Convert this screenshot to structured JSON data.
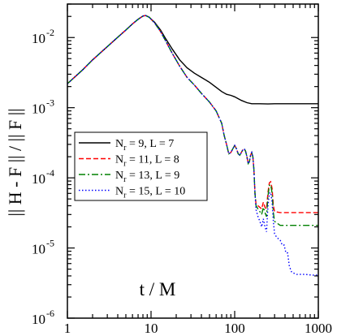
{
  "chart_data": {
    "type": "line",
    "title": "",
    "xlabel": "t / M",
    "ylabel": "|| H - F || / || F ||",
    "x_scale": "log",
    "y_scale": "log",
    "xlim": [
      1,
      1000
    ],
    "ylim": [
      1e-06,
      0.03
    ],
    "x_ticks": [
      {
        "value": 1,
        "label": "1"
      },
      {
        "value": 10,
        "label": "10"
      },
      {
        "value": 100,
        "label": "100"
      },
      {
        "value": 1000,
        "label": "1000"
      }
    ],
    "y_ticks": [
      {
        "value": 1e-06,
        "base": "10",
        "exp": "-6"
      },
      {
        "value": 1e-05,
        "base": "10",
        "exp": "-5"
      },
      {
        "value": 0.0001,
        "base": "10",
        "exp": "-4"
      },
      {
        "value": 0.001,
        "base": "10",
        "exp": "-3"
      },
      {
        "value": 0.01,
        "base": "10",
        "exp": "-2"
      }
    ],
    "grid": false,
    "legend_position": "left-center",
    "series": [
      {
        "name": {
          "main": "N",
          "sub": "r",
          "rest": " = 9, L = 7"
        },
        "color": "#000000",
        "dash": "solid",
        "points": [
          [
            1,
            0.0022
          ],
          [
            1.5,
            0.0034
          ],
          [
            2,
            0.0048
          ],
          [
            3,
            0.0074
          ],
          [
            4,
            0.0101
          ],
          [
            5,
            0.0128
          ],
          [
            6,
            0.0156
          ],
          [
            7,
            0.0182
          ],
          [
            8,
            0.0202
          ],
          [
            8.6,
            0.0206
          ],
          [
            9.5,
            0.0195
          ],
          [
            11,
            0.0165
          ],
          [
            13,
            0.0128
          ],
          [
            15,
            0.0096
          ],
          [
            18,
            0.0068
          ],
          [
            22,
            0.0048
          ],
          [
            27,
            0.0037
          ],
          [
            33,
            0.0031
          ],
          [
            40,
            0.0027
          ],
          [
            50,
            0.0023
          ],
          [
            60,
            0.00195
          ],
          [
            70,
            0.0017
          ],
          [
            80,
            0.00155
          ],
          [
            90,
            0.0015
          ],
          [
            100,
            0.00143
          ],
          [
            120,
            0.00127
          ],
          [
            140,
            0.00118
          ],
          [
            160,
            0.00114
          ],
          [
            180,
            0.00114
          ],
          [
            200,
            0.00114
          ],
          [
            250,
            0.00113
          ],
          [
            300,
            0.00114
          ],
          [
            400,
            0.00114
          ],
          [
            500,
            0.00114
          ],
          [
            700,
            0.00114
          ],
          [
            1000,
            0.00114
          ]
        ]
      },
      {
        "name": {
          "main": "N",
          "sub": "r",
          "rest": " = 11, L = 8"
        },
        "color": "#ff0000",
        "dash": "dashed",
        "points": [
          [
            1,
            0.0022
          ],
          [
            1.5,
            0.0034
          ],
          [
            2,
            0.0048
          ],
          [
            3,
            0.0074
          ],
          [
            4,
            0.0101
          ],
          [
            5,
            0.0128
          ],
          [
            6,
            0.0156
          ],
          [
            7,
            0.0182
          ],
          [
            8,
            0.0202
          ],
          [
            8.6,
            0.0206
          ],
          [
            9.5,
            0.0195
          ],
          [
            11,
            0.0162
          ],
          [
            13,
            0.0122
          ],
          [
            15,
            0.0089
          ],
          [
            18,
            0.0059
          ],
          [
            22,
            0.0039
          ],
          [
            27,
            0.0027
          ],
          [
            33,
            0.0021
          ],
          [
            40,
            0.0016
          ],
          [
            50,
            0.0012
          ],
          [
            60,
            0.0009
          ],
          [
            70,
            0.0006
          ],
          [
            75,
            0.0004
          ],
          [
            80,
            0.0003
          ],
          [
            85,
            0.00022
          ],
          [
            90,
            0.00023
          ],
          [
            95,
            0.00026
          ],
          [
            100,
            0.00029
          ],
          [
            105,
            0.00026
          ],
          [
            110,
            0.00022
          ],
          [
            115,
            0.00021
          ],
          [
            120,
            0.00023
          ],
          [
            125,
            0.00025
          ],
          [
            130,
            0.00026
          ],
          [
            135,
            0.00024
          ],
          [
            140,
            0.0002
          ],
          [
            145,
            0.00016
          ],
          [
            150,
            0.00017
          ],
          [
            155,
            0.00021
          ],
          [
            160,
            0.00023
          ],
          [
            165,
            0.0002
          ],
          [
            170,
            0.00013
          ],
          [
            175,
            6e-05
          ],
          [
            180,
            4.2e-05
          ],
          [
            190,
            4e-05
          ],
          [
            200,
            3.8e-05
          ],
          [
            210,
            3.6e-05
          ],
          [
            220,
            4.5e-05
          ],
          [
            230,
            3.8e-05
          ],
          [
            240,
            3.6e-05
          ],
          [
            250,
            6.2e-05
          ],
          [
            260,
            8.5e-05
          ],
          [
            270,
            8.8e-05
          ],
          [
            280,
            7e-05
          ],
          [
            290,
            4e-05
          ],
          [
            300,
            3.3e-05
          ],
          [
            350,
            3.2e-05
          ],
          [
            400,
            3.2e-05
          ],
          [
            500,
            3.2e-05
          ],
          [
            600,
            3.2e-05
          ],
          [
            800,
            3.2e-05
          ],
          [
            1000,
            3.2e-05
          ]
        ]
      },
      {
        "name": {
          "main": "N",
          "sub": "r",
          "rest": " = 13, L = 9"
        },
        "color": "#008000",
        "dash": "dashdot",
        "points": [
          [
            1,
            0.0022
          ],
          [
            1.5,
            0.0034
          ],
          [
            2,
            0.0048
          ],
          [
            3,
            0.0074
          ],
          [
            4,
            0.0101
          ],
          [
            5,
            0.0128
          ],
          [
            6,
            0.0156
          ],
          [
            7,
            0.0182
          ],
          [
            8,
            0.0202
          ],
          [
            8.6,
            0.0206
          ],
          [
            9.5,
            0.0195
          ],
          [
            11,
            0.0162
          ],
          [
            13,
            0.0122
          ],
          [
            15,
            0.0089
          ],
          [
            18,
            0.0059
          ],
          [
            22,
            0.0039
          ],
          [
            27,
            0.0027
          ],
          [
            33,
            0.0021
          ],
          [
            40,
            0.0016
          ],
          [
            50,
            0.0012
          ],
          [
            60,
            0.0009
          ],
          [
            70,
            0.0006
          ],
          [
            75,
            0.0004
          ],
          [
            80,
            0.0003
          ],
          [
            85,
            0.00022
          ],
          [
            90,
            0.00023
          ],
          [
            95,
            0.00026
          ],
          [
            100,
            0.00029
          ],
          [
            105,
            0.00026
          ],
          [
            110,
            0.00022
          ],
          [
            115,
            0.00021
          ],
          [
            120,
            0.00023
          ],
          [
            125,
            0.00025
          ],
          [
            130,
            0.00026
          ],
          [
            135,
            0.00024
          ],
          [
            140,
            0.0002
          ],
          [
            145,
            0.00016
          ],
          [
            150,
            0.00017
          ],
          [
            155,
            0.00021
          ],
          [
            160,
            0.00023
          ],
          [
            165,
            0.0002
          ],
          [
            170,
            0.00013
          ],
          [
            175,
            6e-05
          ],
          [
            180,
            4e-05
          ],
          [
            190,
            3.6e-05
          ],
          [
            200,
            3.3e-05
          ],
          [
            210,
            3e-05
          ],
          [
            220,
            3.8e-05
          ],
          [
            230,
            3.2e-05
          ],
          [
            240,
            2.8e-05
          ],
          [
            250,
            5.5e-05
          ],
          [
            260,
            7.8e-05
          ],
          [
            270,
            8e-05
          ],
          [
            280,
            6e-05
          ],
          [
            290,
            3.2e-05
          ],
          [
            300,
            2.4e-05
          ],
          [
            350,
            2.1e-05
          ],
          [
            400,
            2.1e-05
          ],
          [
            500,
            2.1e-05
          ],
          [
            600,
            2.1e-05
          ],
          [
            800,
            2.1e-05
          ],
          [
            1000,
            2.1e-05
          ]
        ]
      },
      {
        "name": {
          "main": "N",
          "sub": "r",
          "rest": " = 15, L = 10"
        },
        "color": "#0000ff",
        "dash": "dotted",
        "points": [
          [
            1,
            0.0022
          ],
          [
            1.5,
            0.0034
          ],
          [
            2,
            0.0048
          ],
          [
            3,
            0.0074
          ],
          [
            4,
            0.0101
          ],
          [
            5,
            0.0128
          ],
          [
            6,
            0.0156
          ],
          [
            7,
            0.0182
          ],
          [
            8,
            0.0202
          ],
          [
            8.6,
            0.0206
          ],
          [
            9.5,
            0.0195
          ],
          [
            11,
            0.0162
          ],
          [
            13,
            0.0122
          ],
          [
            15,
            0.0089
          ],
          [
            18,
            0.0059
          ],
          [
            22,
            0.0039
          ],
          [
            27,
            0.0027
          ],
          [
            33,
            0.0021
          ],
          [
            40,
            0.0016
          ],
          [
            50,
            0.0012
          ],
          [
            60,
            0.0009
          ],
          [
            70,
            0.0006
          ],
          [
            75,
            0.0004
          ],
          [
            80,
            0.0003
          ],
          [
            85,
            0.00022
          ],
          [
            90,
            0.00023
          ],
          [
            95,
            0.00026
          ],
          [
            100,
            0.00029
          ],
          [
            105,
            0.00026
          ],
          [
            110,
            0.00022
          ],
          [
            115,
            0.00021
          ],
          [
            120,
            0.00023
          ],
          [
            125,
            0.00025
          ],
          [
            130,
            0.00026
          ],
          [
            135,
            0.00024
          ],
          [
            140,
            0.0002
          ],
          [
            145,
            0.00016
          ],
          [
            150,
            0.00017
          ],
          [
            155,
            0.00021
          ],
          [
            160,
            0.00023
          ],
          [
            165,
            0.0002
          ],
          [
            170,
            0.00013
          ],
          [
            175,
            6e-05
          ],
          [
            180,
            3.5e-05
          ],
          [
            190,
            2.8e-05
          ],
          [
            200,
            2.4e-05
          ],
          [
            210,
            2e-05
          ],
          [
            220,
            2.6e-05
          ],
          [
            230,
            2e-05
          ],
          [
            240,
            1.7e-05
          ],
          [
            250,
            4e-05
          ],
          [
            260,
            6e-05
          ],
          [
            270,
            6.2e-05
          ],
          [
            280,
            4.5e-05
          ],
          [
            290,
            2.4e-05
          ],
          [
            300,
            1.6e-05
          ],
          [
            320,
            1.4e-05
          ],
          [
            350,
            1.3e-05
          ],
          [
            370,
            1.1e-05
          ],
          [
            390,
            1.1e-05
          ],
          [
            410,
            8.5e-06
          ],
          [
            430,
            8.5e-06
          ],
          [
            450,
            5.5e-06
          ],
          [
            480,
            4.5e-06
          ],
          [
            550,
            4.2e-06
          ],
          [
            700,
            4.2e-06
          ],
          [
            850,
            4.1e-06
          ],
          [
            1000,
            4.1e-06
          ]
        ]
      }
    ]
  }
}
